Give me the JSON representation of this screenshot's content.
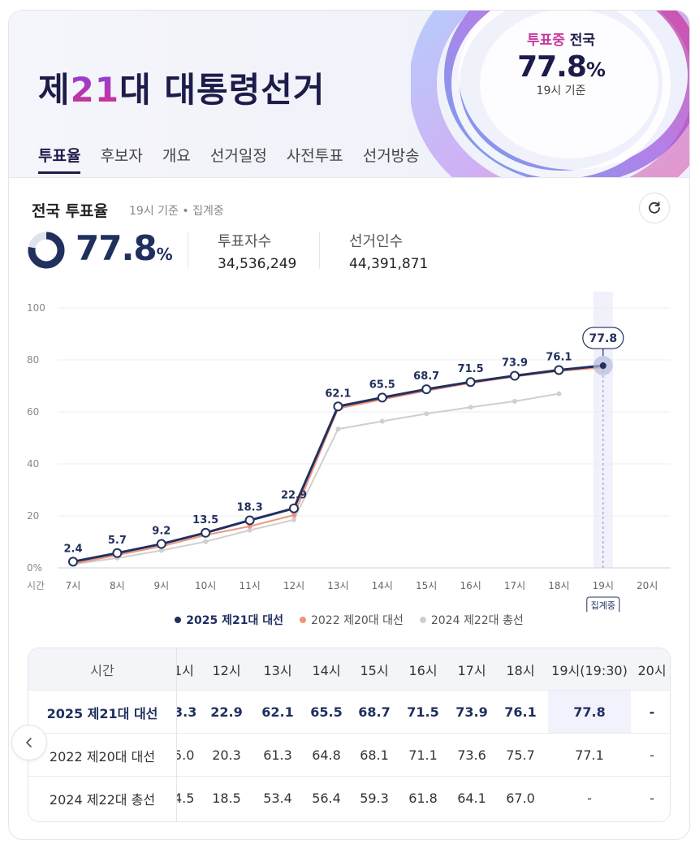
{
  "header": {
    "title_prefix": "제",
    "title_num": "21",
    "title_suffix": "대 대통령선거",
    "status_highlight": "투표중",
    "status_region": " 전국",
    "turnout_value": "77.8",
    "turnout_unit": "%",
    "turnout_time": "19시 기준"
  },
  "tabs": [
    "투표율",
    "후보자",
    "개요",
    "선거일정",
    "사전투표",
    "선거방송"
  ],
  "section": {
    "title": "전국 투표율",
    "subtitle": "19시 기준 • 집계중",
    "turnout_value": "77.8",
    "turnout_unit": "%",
    "voters_label": "투표자수",
    "voters_value": "34,536,249",
    "electorate_label": "선거인수",
    "electorate_value": "44,391,871"
  },
  "icons": {
    "refresh": "refresh-icon",
    "left_arrow": "chevron-left-icon"
  },
  "colors": {
    "primary": "#22305e",
    "series2022": "#f0937a",
    "series2024": "#cfcfcf",
    "accent": "#c73a9c"
  },
  "chart_data": {
    "type": "line",
    "x": [
      "7시",
      "8시",
      "9시",
      "10시",
      "11시",
      "12시",
      "13시",
      "14시",
      "15시",
      "16시",
      "17시",
      "18시",
      "19시",
      "20시"
    ],
    "x_prefix_label": "시간",
    "yticks": [
      "0%",
      "20",
      "40",
      "60",
      "80",
      "100"
    ],
    "ylim": [
      0,
      100
    ],
    "current_label": "77.8",
    "current_badge": "집계중",
    "series": [
      {
        "name": "2025 제21대 대선",
        "values": [
          2.4,
          5.7,
          9.2,
          13.5,
          18.3,
          22.9,
          62.1,
          65.5,
          68.7,
          71.5,
          73.9,
          76.1,
          77.8,
          null
        ]
      },
      {
        "name": "2022 제20대 대선",
        "values": [
          1.6,
          4.9,
          8.3,
          12.6,
          16.0,
          20.3,
          61.3,
          64.8,
          68.1,
          71.1,
          73.6,
          75.7,
          77.1,
          null
        ]
      },
      {
        "name": "2024 제22대 총선",
        "values": [
          1.4,
          3.8,
          6.7,
          10.1,
          14.5,
          18.5,
          53.4,
          56.4,
          59.3,
          61.8,
          64.1,
          67.0,
          null,
          null
        ]
      }
    ],
    "grid": true,
    "legend_position": "bottom"
  },
  "table": {
    "header_label": "시간",
    "columns": [
      "1시",
      "12시",
      "13시",
      "14시",
      "15시",
      "16시",
      "17시",
      "18시",
      "19시(19:30)",
      "20시"
    ],
    "rows": [
      {
        "label": "2025 제21대 대선",
        "values": [
          "3.3",
          "22.9",
          "62.1",
          "65.5",
          "68.7",
          "71.5",
          "73.9",
          "76.1",
          "77.8",
          "-"
        ]
      },
      {
        "label": "2022 제20대 대선",
        "values": [
          "5.0",
          "20.3",
          "61.3",
          "64.8",
          "68.1",
          "71.1",
          "73.6",
          "75.7",
          "77.1",
          "-"
        ]
      },
      {
        "label": "2024 제22대 총선",
        "values": [
          "4.5",
          "18.5",
          "53.4",
          "56.4",
          "59.3",
          "61.8",
          "64.1",
          "67.0",
          "-",
          "-"
        ]
      }
    ]
  }
}
